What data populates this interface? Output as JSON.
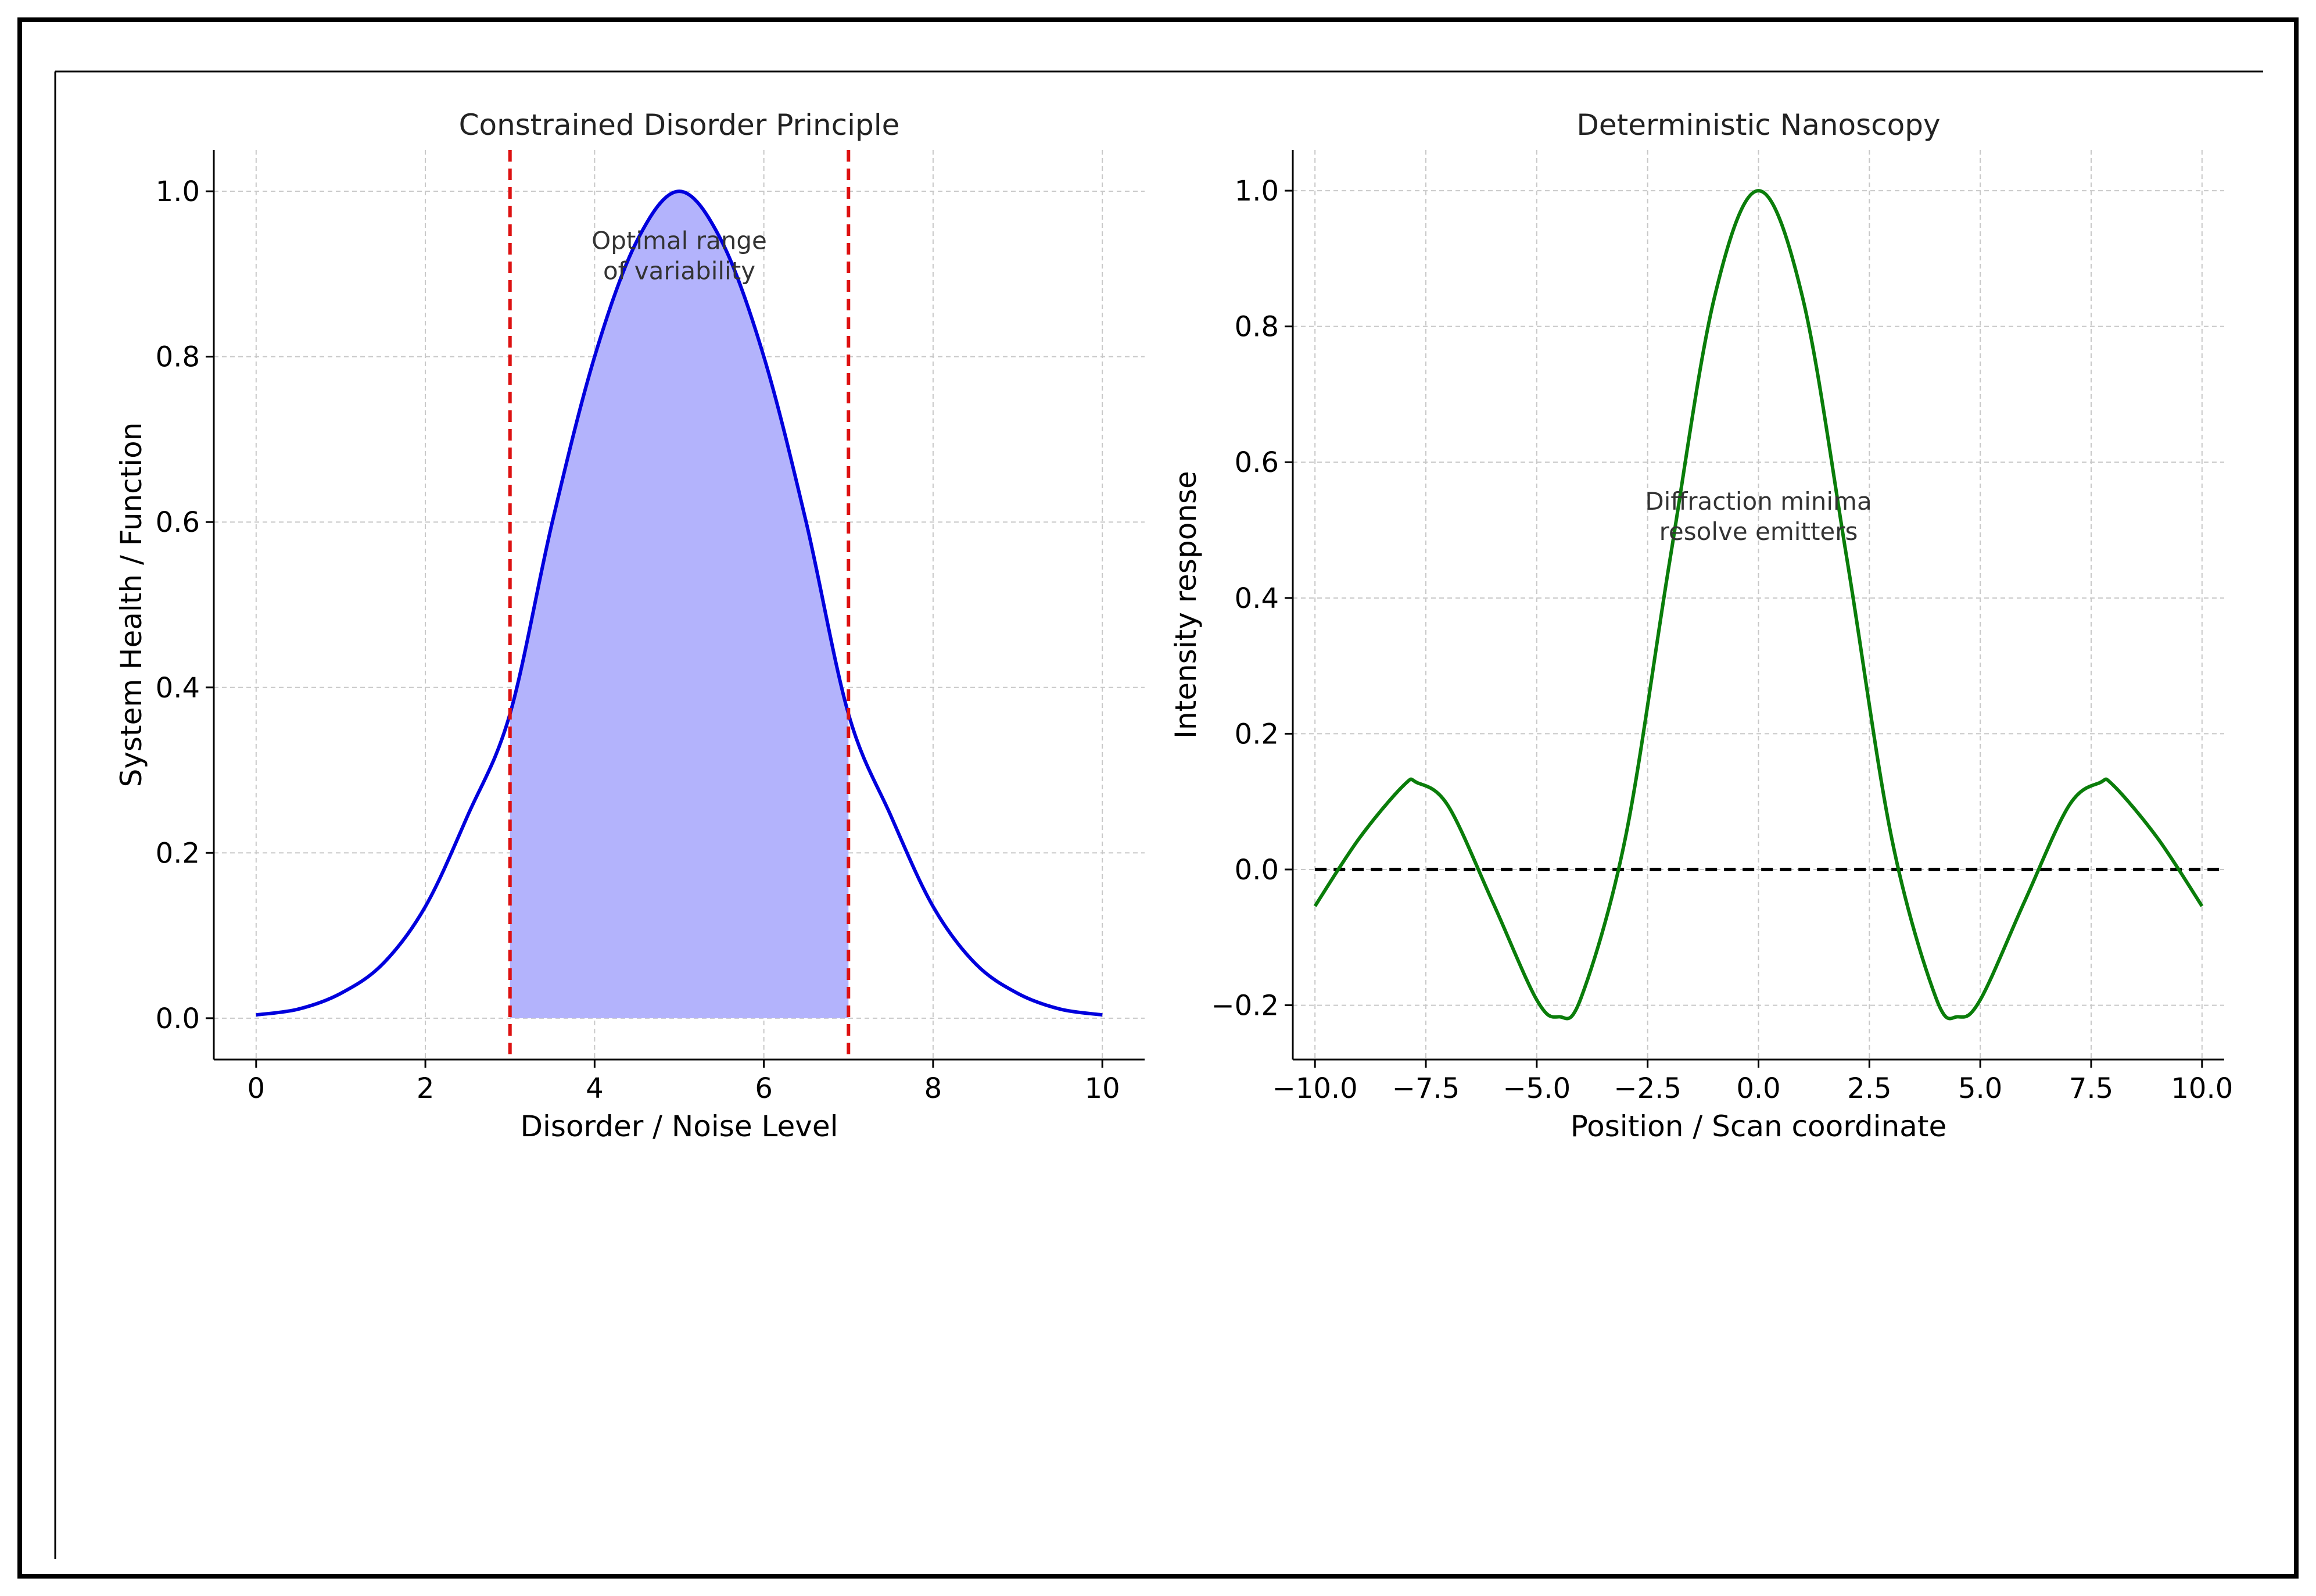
{
  "chart_data": [
    {
      "type": "line",
      "title": "Constrained Disorder Principle",
      "xlabel": "Disorder / Noise Level",
      "ylabel": "System Health / Function",
      "xlim": [
        -0.5,
        10.5
      ],
      "ylim": [
        -0.05,
        1.05
      ],
      "xticks": [
        0,
        2,
        4,
        6,
        8,
        10
      ],
      "xtick_labels": [
        "0",
        "2",
        "4",
        "6",
        "8",
        "10"
      ],
      "yticks": [
        0.0,
        0.2,
        0.4,
        0.6,
        0.8,
        1.0
      ],
      "ytick_labels": [
        "0.0",
        "0.2",
        "0.4",
        "0.6",
        "0.8",
        "1.0"
      ],
      "grid": true,
      "series": [
        {
          "color": "#0000dd",
          "x": [
            0,
            0.5,
            1,
            1.5,
            2,
            2.5,
            3,
            3.5,
            4,
            4.5,
            5,
            5.5,
            6,
            6.5,
            7,
            7.5,
            8,
            8.5,
            9,
            9.5,
            10
          ],
          "y": [
            0.004,
            0.011,
            0.03,
            0.066,
            0.135,
            0.245,
            0.368,
            0.6,
            0.8,
            0.94,
            1.0,
            0.94,
            0.8,
            0.6,
            0.368,
            0.245,
            0.135,
            0.066,
            0.03,
            0.011,
            0.004
          ]
        }
      ],
      "shaded_region": {
        "x_from": 3,
        "x_to": 7,
        "color": "#b3b3fc"
      },
      "vlines": [
        {
          "x": 3,
          "color": "#dd1111",
          "style": "dashed"
        },
        {
          "x": 7,
          "color": "#dd1111",
          "style": "dashed"
        }
      ],
      "annotation": {
        "lines": [
          "Optimal range",
          "of variability"
        ],
        "x": 5,
        "y": 0.93
      }
    },
    {
      "type": "line",
      "title": "Deterministic Nanoscopy",
      "xlabel": "Position / Scan coordinate",
      "ylabel": "Intensity response",
      "xlim": [
        -10.5,
        10.5
      ],
      "ylim": [
        -0.28,
        1.06
      ],
      "xticks": [
        -10,
        -7.5,
        -5,
        -2.5,
        0,
        2.5,
        5,
        7.5,
        10
      ],
      "xtick_labels": [
        "−10.0",
        "−7.5",
        "−5.0",
        "−2.5",
        "0.0",
        "2.5",
        "5.0",
        "7.5",
        "10.0"
      ],
      "yticks": [
        -0.2,
        0.0,
        0.2,
        0.4,
        0.6,
        0.8,
        1.0
      ],
      "ytick_labels": [
        "−0.2",
        "0.0",
        "0.2",
        "0.4",
        "0.6",
        "0.8",
        "1.0"
      ],
      "grid": true,
      "series": [
        {
          "color": "#0a7d0a",
          "x": [
            -10,
            -9,
            -8,
            -7.7,
            -7,
            -6,
            -5,
            -4.5,
            -4,
            -3,
            -2,
            -1,
            0,
            1,
            2,
            3,
            4,
            4.5,
            5,
            6,
            7,
            7.7,
            8,
            9,
            10
          ],
          "y": [
            -0.054,
            0.046,
            0.124,
            0.128,
            0.094,
            -0.047,
            -0.192,
            -0.217,
            -0.189,
            0.047,
            0.455,
            0.841,
            1.0,
            0.841,
            0.455,
            0.047,
            -0.189,
            -0.217,
            -0.192,
            -0.047,
            0.094,
            0.128,
            0.124,
            0.046,
            -0.054
          ]
        }
      ],
      "hlines": [
        {
          "y": 0,
          "color": "#000000",
          "style": "dashed"
        }
      ],
      "annotation": {
        "lines": [
          "Diffraction minima",
          "resolve emitters"
        ],
        "x": 0,
        "y": 0.53
      }
    }
  ]
}
